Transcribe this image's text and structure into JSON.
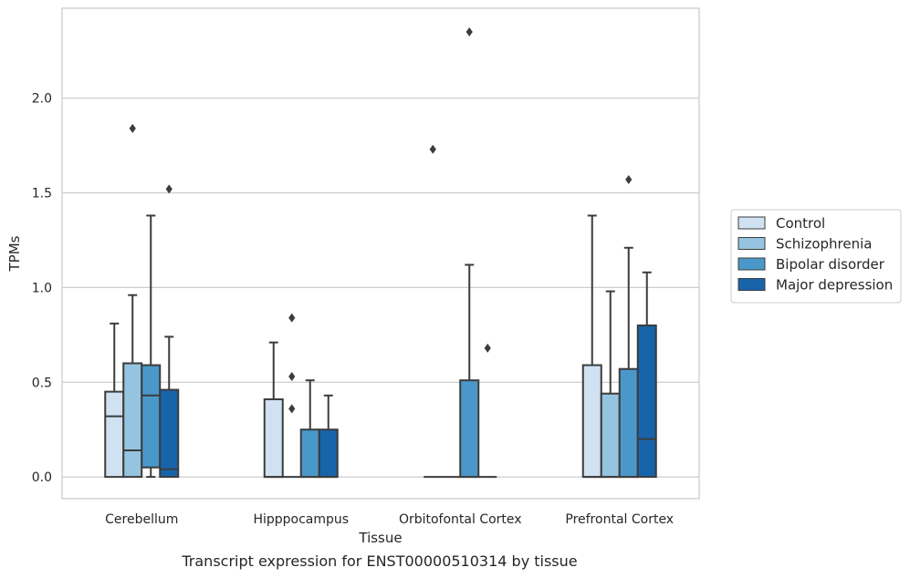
{
  "caption": "Transcript expression for ENST00000510314 by tissue",
  "chart_data": {
    "type": "boxplot",
    "xlabel": "Tissue",
    "ylabel": "TPMs",
    "ylim": [
      -0.115,
      2.475
    ],
    "yticks": [
      0.0,
      0.5,
      1.0,
      1.5,
      2.0
    ],
    "ytick_labels": [
      "0.0",
      "0.5",
      "1.0",
      "1.5",
      "2.0"
    ],
    "grid": "horizontal",
    "legend_position": "right-outside",
    "categories": [
      "Cerebellum",
      "Hipppocampus",
      "Orbitofontal Cortex",
      "Prefrontal Cortex"
    ],
    "series": [
      {
        "name": "Control",
        "color": "#d0e1f2",
        "boxes": [
          {
            "whislo": 0.0,
            "q1": 0.0,
            "med": 0.32,
            "q3": 0.45,
            "whishi": 0.81,
            "fliers": []
          },
          {
            "whislo": 0.0,
            "q1": 0.0,
            "med": 0.0,
            "q3": 0.41,
            "whishi": 0.71,
            "fliers": []
          },
          {
            "whislo": 0.0,
            "q1": 0.0,
            "med": 0.0,
            "q3": 0.0,
            "whishi": 0.0,
            "fliers": [
              1.73
            ]
          },
          {
            "whislo": 0.0,
            "q1": 0.0,
            "med": 0.0,
            "q3": 0.59,
            "whishi": 1.38,
            "fliers": []
          }
        ]
      },
      {
        "name": "Schizophrenia",
        "color": "#94c4df",
        "boxes": [
          {
            "whislo": 0.0,
            "q1": 0.0,
            "med": 0.14,
            "q3": 0.6,
            "whishi": 0.96,
            "fliers": [
              1.84
            ]
          },
          {
            "whislo": 0.0,
            "q1": 0.0,
            "med": 0.0,
            "q3": 0.0,
            "whishi": 0.0,
            "fliers": [
              0.36,
              0.53,
              0.84
            ]
          },
          {
            "whislo": 0.0,
            "q1": 0.0,
            "med": 0.0,
            "q3": 0.0,
            "whishi": 0.0,
            "fliers": []
          },
          {
            "whislo": 0.0,
            "q1": 0.0,
            "med": 0.0,
            "q3": 0.44,
            "whishi": 0.98,
            "fliers": []
          }
        ]
      },
      {
        "name": "Bipolar disorder",
        "color": "#4a98c9",
        "boxes": [
          {
            "whislo": 0.0,
            "q1": 0.05,
            "med": 0.43,
            "q3": 0.59,
            "whishi": 1.38,
            "fliers": []
          },
          {
            "whislo": 0.0,
            "q1": 0.0,
            "med": 0.0,
            "q3": 0.25,
            "whishi": 0.51,
            "fliers": []
          },
          {
            "whislo": 0.0,
            "q1": 0.0,
            "med": 0.0,
            "q3": 0.51,
            "whishi": 1.12,
            "fliers": [
              2.35
            ]
          },
          {
            "whislo": 0.0,
            "q1": 0.0,
            "med": 0.0,
            "q3": 0.57,
            "whishi": 1.21,
            "fliers": [
              1.57
            ]
          }
        ]
      },
      {
        "name": "Major depression",
        "color": "#1764ab",
        "boxes": [
          {
            "whislo": 0.0,
            "q1": 0.0,
            "med": 0.04,
            "q3": 0.46,
            "whishi": 0.74,
            "fliers": [
              1.52
            ]
          },
          {
            "whislo": 0.0,
            "q1": 0.0,
            "med": 0.0,
            "q3": 0.25,
            "whishi": 0.43,
            "fliers": []
          },
          {
            "whislo": 0.0,
            "q1": 0.0,
            "med": 0.0,
            "q3": 0.0,
            "whishi": 0.0,
            "fliers": [
              0.68
            ]
          },
          {
            "whislo": 0.0,
            "q1": 0.0,
            "med": 0.2,
            "q3": 0.8,
            "whishi": 1.08,
            "fliers": []
          }
        ]
      }
    ]
  }
}
